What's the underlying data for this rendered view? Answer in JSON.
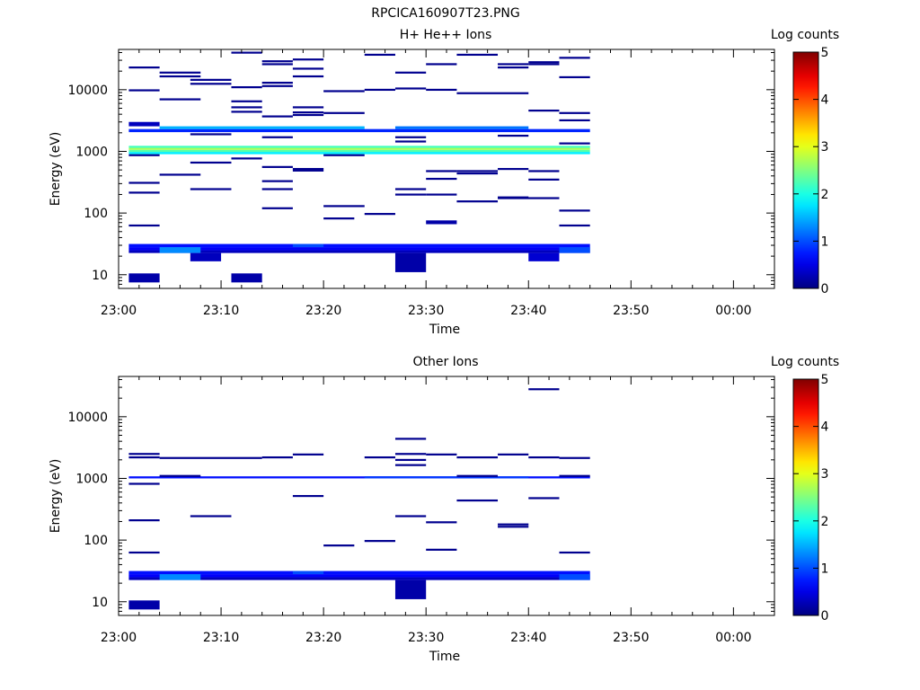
{
  "title": "RPCICA160907T23.PNG",
  "chart_data": [
    {
      "type": "heatmap",
      "title": "H+ He++ Ions",
      "xlabel": "Time",
      "ylabel": "Energy (eV)",
      "yscale": "log",
      "ylim": [
        6,
        45000
      ],
      "x_ticks": [
        "23:00",
        "23:10",
        "23:20",
        "23:30",
        "23:40",
        "23:50",
        "00:00"
      ],
      "y_ticks": [
        "10",
        "100",
        "1000",
        "10000"
      ],
      "colorbar": {
        "label": "Log counts",
        "ticks": [
          "0",
          "1",
          "2",
          "3",
          "4",
          "5"
        ],
        "range": [
          0,
          5
        ]
      },
      "cells": [
        {
          "t0": "23:01",
          "t1": "23:04",
          "e0": 7.5,
          "e1": 10.5,
          "v": 0.2
        },
        {
          "t0": "23:11",
          "t1": "23:14",
          "e0": 7.5,
          "e1": 10.5,
          "v": 0.2
        },
        {
          "t0": "23:01",
          "t1": "23:46",
          "e0": 22.5,
          "e1": 25,
          "v": 0.3
        },
        {
          "t0": "23:01",
          "t1": "23:46",
          "e0": 25,
          "e1": 28,
          "v": 0.6
        },
        {
          "t0": "23:01",
          "t1": "23:46",
          "e0": 28,
          "e1": 31.5,
          "v": 0.7
        },
        {
          "t0": "23:04",
          "t1": "23:08",
          "e0": 22.5,
          "e1": 28,
          "v": 1.3
        },
        {
          "t0": "23:17",
          "t1": "23:20",
          "e0": 28,
          "e1": 31.5,
          "v": 1.0
        },
        {
          "t0": "23:43",
          "t1": "23:46",
          "e0": 22.5,
          "e1": 28,
          "v": 1.0
        },
        {
          "t0": "23:07",
          "t1": "23:10",
          "e0": 16.5,
          "e1": 22.5,
          "v": 0.3
        },
        {
          "t0": "23:27",
          "t1": "23:30",
          "e0": 11,
          "e1": 22.5,
          "v": 0.2
        },
        {
          "t0": "23:40",
          "t1": "23:43",
          "e0": 16.5,
          "e1": 22.5,
          "v": 0.4
        },
        {
          "t0": "23:30",
          "t1": "23:33",
          "e0": 66,
          "e1": 76,
          "v": 0.2
        },
        {
          "t0": "23:01",
          "t1": "23:46",
          "e0": 900,
          "e1": 980,
          "v": 1.8
        },
        {
          "t0": "23:01",
          "t1": "23:46",
          "e0": 980,
          "e1": 1060,
          "v": 2.3
        },
        {
          "t0": "23:01",
          "t1": "23:46",
          "e0": 1060,
          "e1": 1140,
          "v": 2.7
        },
        {
          "t0": "23:01",
          "t1": "23:46",
          "e0": 1140,
          "e1": 1230,
          "v": 2.2
        },
        {
          "t0": "23:01",
          "t1": "23:46",
          "e0": 2050,
          "e1": 2300,
          "v": 0.8
        },
        {
          "t0": "23:04",
          "t1": "23:24",
          "e0": 2300,
          "e1": 2550,
          "v": 1.5
        },
        {
          "t0": "23:27",
          "t1": "23:40",
          "e0": 2300,
          "e1": 2550,
          "v": 1.2
        },
        {
          "t0": "23:01",
          "t1": "23:04",
          "e0": 2550,
          "e1": 3000,
          "v": 0.3
        }
      ],
      "lines": [
        {
          "t0": "23:01",
          "t1": "23:04",
          "e": 23000
        },
        {
          "t0": "23:01",
          "t1": "23:04",
          "e": 9800
        },
        {
          "t0": "23:01",
          "t1": "23:04",
          "e": 870
        },
        {
          "t0": "23:01",
          "t1": "23:04",
          "e": 310
        },
        {
          "t0": "23:01",
          "t1": "23:04",
          "e": 215
        },
        {
          "t0": "23:01",
          "t1": "23:04",
          "e": 63
        },
        {
          "t0": "23:04",
          "t1": "23:08",
          "e": 19000
        },
        {
          "t0": "23:04",
          "t1": "23:08",
          "e": 16500
        },
        {
          "t0": "23:04",
          "t1": "23:08",
          "e": 7000
        },
        {
          "t0": "23:04",
          "t1": "23:08",
          "e": 420
        },
        {
          "t0": "23:07",
          "t1": "23:11",
          "e": 14500
        },
        {
          "t0": "23:07",
          "t1": "23:11",
          "e": 12500
        },
        {
          "t0": "23:07",
          "t1": "23:11",
          "e": 1900
        },
        {
          "t0": "23:07",
          "t1": "23:11",
          "e": 660
        },
        {
          "t0": "23:07",
          "t1": "23:11",
          "e": 245
        },
        {
          "t0": "23:11",
          "t1": "23:14",
          "e": 40000
        },
        {
          "t0": "23:11",
          "t1": "23:14",
          "e": 11000
        },
        {
          "t0": "23:11",
          "t1": "23:14",
          "e": 6500
        },
        {
          "t0": "23:11",
          "t1": "23:14",
          "e": 5200
        },
        {
          "t0": "23:11",
          "t1": "23:14",
          "e": 4400
        },
        {
          "t0": "23:11",
          "t1": "23:14",
          "e": 770
        },
        {
          "t0": "23:14",
          "t1": "23:17",
          "e": 29000
        },
        {
          "t0": "23:14",
          "t1": "23:17",
          "e": 26000
        },
        {
          "t0": "23:14",
          "t1": "23:17",
          "e": 13000
        },
        {
          "t0": "23:14",
          "t1": "23:17",
          "e": 11500
        },
        {
          "t0": "23:14",
          "t1": "23:17",
          "e": 3700
        },
        {
          "t0": "23:14",
          "t1": "23:17",
          "e": 1700
        },
        {
          "t0": "23:14",
          "t1": "23:17",
          "e": 560
        },
        {
          "t0": "23:14",
          "t1": "23:17",
          "e": 330
        },
        {
          "t0": "23:14",
          "t1": "23:17",
          "e": 245
        },
        {
          "t0": "23:14",
          "t1": "23:17",
          "e": 120
        },
        {
          "t0": "23:17",
          "t1": "23:20",
          "e": 31000
        },
        {
          "t0": "23:17",
          "t1": "23:20",
          "e": 22000
        },
        {
          "t0": "23:17",
          "t1": "23:20",
          "e": 16500
        },
        {
          "t0": "23:17",
          "t1": "23:20",
          "e": 5200
        },
        {
          "t0": "23:17",
          "t1": "23:20",
          "e": 4300
        },
        {
          "t0": "23:17",
          "t1": "23:20",
          "e": 3900
        },
        {
          "t0": "23:17",
          "t1": "23:20",
          "e": 520
        },
        {
          "t0": "23:17",
          "t1": "23:20",
          "e": 490
        },
        {
          "t0": "23:20",
          "t1": "23:24",
          "e": 9500
        },
        {
          "t0": "23:20",
          "t1": "23:24",
          "e": 4200
        },
        {
          "t0": "23:20",
          "t1": "23:24",
          "e": 870
        },
        {
          "t0": "23:20",
          "t1": "23:24",
          "e": 130
        },
        {
          "t0": "23:20",
          "t1": "23:23",
          "e": 82
        },
        {
          "t0": "23:24",
          "t1": "23:27",
          "e": 37000
        },
        {
          "t0": "23:24",
          "t1": "23:27",
          "e": 10000
        },
        {
          "t0": "23:24",
          "t1": "23:27",
          "e": 97
        },
        {
          "t0": "23:27",
          "t1": "23:30",
          "e": 19000
        },
        {
          "t0": "23:27",
          "t1": "23:30",
          "e": 10500
        },
        {
          "t0": "23:27",
          "t1": "23:30",
          "e": 1700
        },
        {
          "t0": "23:27",
          "t1": "23:30",
          "e": 1450
        },
        {
          "t0": "23:27",
          "t1": "23:30",
          "e": 245
        },
        {
          "t0": "23:27",
          "t1": "23:30",
          "e": 200
        },
        {
          "t0": "23:30",
          "t1": "23:33",
          "e": 26000
        },
        {
          "t0": "23:30",
          "t1": "23:33",
          "e": 10000
        },
        {
          "t0": "23:30",
          "t1": "23:33",
          "e": 480
        },
        {
          "t0": "23:30",
          "t1": "23:33",
          "e": 360
        },
        {
          "t0": "23:30",
          "t1": "23:33",
          "e": 200
        },
        {
          "t0": "23:33",
          "t1": "23:37",
          "e": 37000
        },
        {
          "t0": "23:33",
          "t1": "23:40",
          "e": 8800
        },
        {
          "t0": "23:33",
          "t1": "23:37",
          "e": 480
        },
        {
          "t0": "23:33",
          "t1": "23:37",
          "e": 440
        },
        {
          "t0": "23:33",
          "t1": "23:37",
          "e": 155
        },
        {
          "t0": "23:37",
          "t1": "23:40",
          "e": 26000
        },
        {
          "t0": "23:37",
          "t1": "23:40",
          "e": 23000
        },
        {
          "t0": "23:37",
          "t1": "23:40",
          "e": 1800
        },
        {
          "t0": "23:37",
          "t1": "23:40",
          "e": 520
        },
        {
          "t0": "23:37",
          "t1": "23:40",
          "e": 180
        },
        {
          "t0": "23:37",
          "t1": "23:43",
          "e": 175
        },
        {
          "t0": "23:40",
          "t1": "23:43",
          "e": 28000
        },
        {
          "t0": "23:40",
          "t1": "23:43",
          "e": 26000
        },
        {
          "t0": "23:40",
          "t1": "23:43",
          "e": 4600
        },
        {
          "t0": "23:40",
          "t1": "23:43",
          "e": 480
        },
        {
          "t0": "23:40",
          "t1": "23:43",
          "e": 350
        },
        {
          "t0": "23:43",
          "t1": "23:46",
          "e": 33000
        },
        {
          "t0": "23:43",
          "t1": "23:46",
          "e": 16000
        },
        {
          "t0": "23:43",
          "t1": "23:46",
          "e": 4200
        },
        {
          "t0": "23:43",
          "t1": "23:46",
          "e": 3200
        },
        {
          "t0": "23:43",
          "t1": "23:46",
          "e": 1350
        },
        {
          "t0": "23:43",
          "t1": "23:46",
          "e": 110
        },
        {
          "t0": "23:43",
          "t1": "23:46",
          "e": 63
        }
      ]
    },
    {
      "type": "heatmap",
      "title": "Other Ions",
      "xlabel": "Time",
      "ylabel": "Energy (eV)",
      "yscale": "log",
      "ylim": [
        6,
        45000
      ],
      "x_ticks": [
        "23:00",
        "23:10",
        "23:20",
        "23:30",
        "23:40",
        "23:50",
        "00:00"
      ],
      "y_ticks": [
        "10",
        "100",
        "1000",
        "10000"
      ],
      "colorbar": {
        "label": "Log counts",
        "ticks": [
          "0",
          "1",
          "2",
          "3",
          "4",
          "5"
        ],
        "range": [
          0,
          5
        ]
      },
      "cells": [
        {
          "t0": "23:01",
          "t1": "23:04",
          "e0": 7.5,
          "e1": 10.5,
          "v": 0.2
        },
        {
          "t0": "23:01",
          "t1": "23:46",
          "e0": 22.5,
          "e1": 25,
          "v": 0.3
        },
        {
          "t0": "23:01",
          "t1": "23:46",
          "e0": 25,
          "e1": 28,
          "v": 0.6
        },
        {
          "t0": "23:01",
          "t1": "23:46",
          "e0": 28,
          "e1": 31.5,
          "v": 0.7
        },
        {
          "t0": "23:04",
          "t1": "23:08",
          "e0": 22.5,
          "e1": 28,
          "v": 1.3
        },
        {
          "t0": "23:17",
          "t1": "23:20",
          "e0": 28,
          "e1": 31.5,
          "v": 1.0
        },
        {
          "t0": "23:43",
          "t1": "23:46",
          "e0": 22.5,
          "e1": 28,
          "v": 1.0
        },
        {
          "t0": "23:27",
          "t1": "23:30",
          "e0": 11,
          "e1": 22.5,
          "v": 0.2
        },
        {
          "t0": "23:01",
          "t1": "23:46",
          "e0": 1000,
          "e1": 1080,
          "v": 0.7
        },
        {
          "t0": "23:24",
          "t1": "23:40",
          "e0": 1000,
          "e1": 1080,
          "v": 0.9
        }
      ],
      "lines": [
        {
          "t0": "23:01",
          "t1": "23:04",
          "e": 2500
        },
        {
          "t0": "23:01",
          "t1": "23:04",
          "e": 2200
        },
        {
          "t0": "23:01",
          "t1": "23:04",
          "e": 820
        },
        {
          "t0": "23:01",
          "t1": "23:04",
          "e": 210
        },
        {
          "t0": "23:01",
          "t1": "23:04",
          "e": 63
        },
        {
          "t0": "23:04",
          "t1": "23:14",
          "e": 2150
        },
        {
          "t0": "23:04",
          "t1": "23:08",
          "e": 1100
        },
        {
          "t0": "23:07",
          "t1": "23:11",
          "e": 245
        },
        {
          "t0": "23:14",
          "t1": "23:17",
          "e": 2200
        },
        {
          "t0": "23:17",
          "t1": "23:20",
          "e": 2450
        },
        {
          "t0": "23:17",
          "t1": "23:20",
          "e": 520
        },
        {
          "t0": "23:20",
          "t1": "23:23",
          "e": 82
        },
        {
          "t0": "23:24",
          "t1": "23:27",
          "e": 2200
        },
        {
          "t0": "23:24",
          "t1": "23:27",
          "e": 97
        },
        {
          "t0": "23:27",
          "t1": "23:30",
          "e": 4400
        },
        {
          "t0": "23:27",
          "t1": "23:30",
          "e": 2500
        },
        {
          "t0": "23:27",
          "t1": "23:30",
          "e": 2000
        },
        {
          "t0": "23:27",
          "t1": "23:30",
          "e": 1650
        },
        {
          "t0": "23:27",
          "t1": "23:30",
          "e": 245
        },
        {
          "t0": "23:30",
          "t1": "23:33",
          "e": 2450
        },
        {
          "t0": "23:30",
          "t1": "23:33",
          "e": 195
        },
        {
          "t0": "23:30",
          "t1": "23:33",
          "e": 70
        },
        {
          "t0": "23:33",
          "t1": "23:37",
          "e": 2200
        },
        {
          "t0": "23:33",
          "t1": "23:37",
          "e": 1100
        },
        {
          "t0": "23:33",
          "t1": "23:37",
          "e": 440
        },
        {
          "t0": "23:37",
          "t1": "23:40",
          "e": 2450
        },
        {
          "t0": "23:37",
          "t1": "23:40",
          "e": 180
        },
        {
          "t0": "23:37",
          "t1": "23:40",
          "e": 165
        },
        {
          "t0": "23:40",
          "t1": "23:43",
          "e": 28000
        },
        {
          "t0": "23:40",
          "t1": "23:43",
          "e": 2200
        },
        {
          "t0": "23:40",
          "t1": "23:43",
          "e": 480
        },
        {
          "t0": "23:43",
          "t1": "23:46",
          "e": 2150
        },
        {
          "t0": "23:43",
          "t1": "23:46",
          "e": 1100
        },
        {
          "t0": "23:43",
          "t1": "23:46",
          "e": 63
        }
      ]
    }
  ]
}
